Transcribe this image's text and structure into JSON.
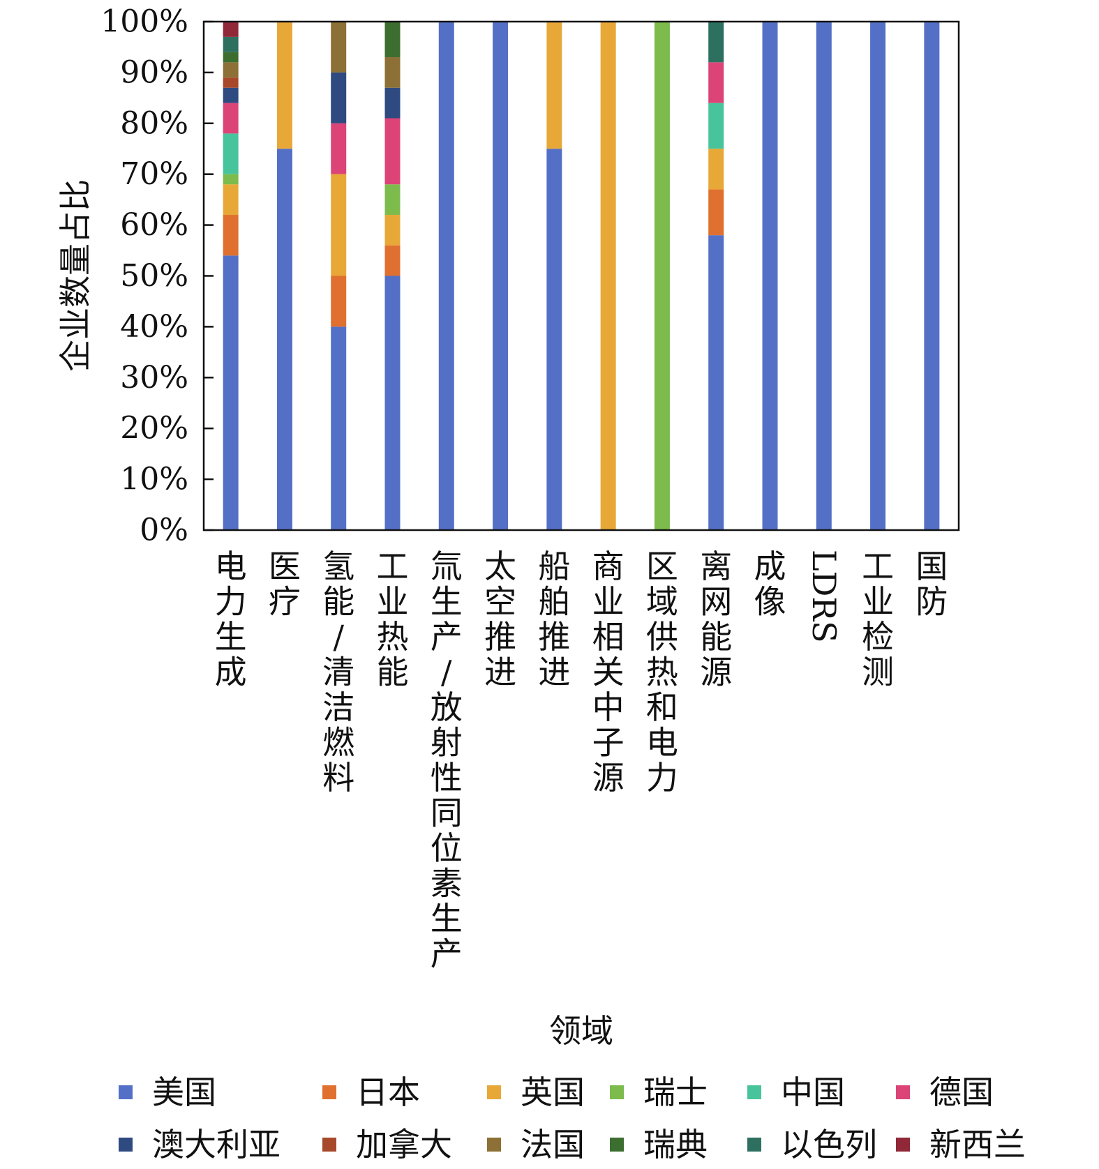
{
  "chart_data": {
    "type": "bar",
    "stacked": true,
    "xlabel": "领域",
    "ylabel": "企业数量占比",
    "ylim": [
      0,
      100
    ],
    "yticks": [
      "0%",
      "10%",
      "20%",
      "30%",
      "40%",
      "50%",
      "60%",
      "70%",
      "80%",
      "90%",
      "100%"
    ],
    "grid": false,
    "legend_position": "bottom",
    "categories": [
      "电力生成",
      "医疗",
      "氢能/清洁燃料",
      "工业热能",
      "氚生产/放射性同位素生产",
      "太空推进",
      "船舶推进",
      "商业相关中子源",
      "区域供热和电力",
      "离网能源",
      "成像",
      "LDRS",
      "工业检测",
      "国防"
    ],
    "series": [
      {
        "name": "美国",
        "color": "#5470c6",
        "values": [
          54,
          75,
          40,
          50,
          100,
          100,
          75,
          0,
          0,
          58,
          100,
          100,
          100,
          100
        ]
      },
      {
        "name": "日本",
        "color": "#e07030",
        "values": [
          8,
          0,
          10,
          6,
          0,
          0,
          0,
          0,
          0,
          9,
          0,
          0,
          0,
          0
        ]
      },
      {
        "name": "英国",
        "color": "#e8a838",
        "values": [
          6,
          25,
          20,
          6,
          0,
          0,
          25,
          100,
          0,
          8,
          0,
          0,
          0,
          0
        ]
      },
      {
        "name": "瑞士",
        "color": "#7cbb4c",
        "values": [
          2,
          0,
          0,
          6,
          0,
          0,
          0,
          0,
          100,
          0,
          0,
          0,
          0,
          0
        ]
      },
      {
        "name": "中国",
        "color": "#48c49c",
        "values": [
          8,
          0,
          0,
          0,
          0,
          0,
          0,
          0,
          0,
          9,
          0,
          0,
          0,
          0
        ]
      },
      {
        "name": "德国",
        "color": "#dc4478",
        "values": [
          6,
          0,
          10,
          13,
          0,
          0,
          0,
          0,
          0,
          8,
          0,
          0,
          0,
          0
        ]
      },
      {
        "name": "澳大利亚",
        "color": "#2e4a80",
        "values": [
          3,
          0,
          10,
          6,
          0,
          0,
          0,
          0,
          0,
          0,
          0,
          0,
          0,
          0
        ]
      },
      {
        "name": "加拿大",
        "color": "#a8482a",
        "values": [
          2,
          0,
          0,
          0,
          0,
          0,
          0,
          0,
          0,
          0,
          0,
          0,
          0,
          0
        ]
      },
      {
        "name": "法国",
        "color": "#8c7035",
        "values": [
          3,
          0,
          10,
          6,
          0,
          0,
          0,
          0,
          0,
          0,
          0,
          0,
          0,
          0
        ]
      },
      {
        "name": "瑞典",
        "color": "#3c6e30",
        "values": [
          2,
          0,
          0,
          7,
          0,
          0,
          0,
          0,
          0,
          0,
          0,
          0,
          0,
          0
        ]
      },
      {
        "name": "以色列",
        "color": "#2e7060",
        "values": [
          3,
          0,
          0,
          0,
          0,
          0,
          0,
          0,
          0,
          8,
          0,
          0,
          0,
          0
        ]
      },
      {
        "name": "新西兰",
        "color": "#902838",
        "values": [
          3,
          0,
          0,
          0,
          0,
          0,
          0,
          0,
          0,
          0,
          0,
          0,
          0,
          0
        ]
      }
    ]
  }
}
